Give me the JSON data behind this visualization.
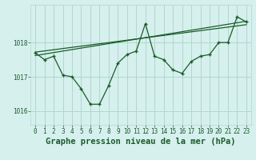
{
  "title": "Graphe pression niveau de la mer (hPa)",
  "bg_color": "#d6f0ee",
  "grid_color": "#b0d8cc",
  "line_color": "#1a5c28",
  "marker_color": "#1a5c28",
  "xlim": [
    -0.5,
    23.5
  ],
  "ylim": [
    1015.6,
    1019.1
  ],
  "yticks": [
    1016,
    1017,
    1018
  ],
  "xticks": [
    0,
    1,
    2,
    3,
    4,
    5,
    6,
    7,
    8,
    9,
    10,
    11,
    12,
    13,
    14,
    15,
    16,
    17,
    18,
    19,
    20,
    21,
    22,
    23
  ],
  "pressure_data": [
    1017.7,
    1017.5,
    1017.6,
    1017.05,
    1017.0,
    1016.65,
    1016.2,
    1016.2,
    1016.75,
    1017.4,
    1017.65,
    1017.75,
    1018.55,
    1017.6,
    1017.5,
    1017.2,
    1017.1,
    1017.45,
    1017.6,
    1017.65,
    1018.0,
    1018.0,
    1018.75,
    1018.6
  ],
  "trend_line1": [
    1017.72,
    1018.52
  ],
  "trend_line2": [
    1017.62,
    1018.62
  ],
  "title_fontsize": 7.5,
  "tick_fontsize": 5.5
}
